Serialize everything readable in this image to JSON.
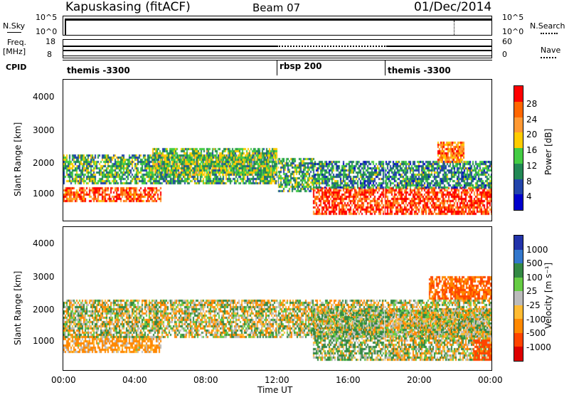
{
  "header": {
    "site": "Kapuskasing (fitACF)",
    "beam": "Beam 07",
    "date": "01/Dec/2014"
  },
  "aux_panels": {
    "nsky_label": "N.Sky",
    "nsky_ticks": [
      "10^5",
      "10^0"
    ],
    "nsearch_label": "N.Search",
    "nsearch_ticks": [
      "10^5",
      "10^0"
    ],
    "freq_label": "Freq.",
    "freq_unit": "[MHz]",
    "freq_ticks": [
      "18",
      "8"
    ],
    "nave_label": "Nave",
    "nave_ticks": [
      "60",
      "0"
    ],
    "cpid_label": "CPID",
    "cpid_segments": [
      {
        "label": "themis -3300",
        "start_hour": 0
      },
      {
        "label": "rbsp 200",
        "start_hour": 12
      },
      {
        "label": "themis -3300",
        "start_hour": 18
      }
    ]
  },
  "axes": {
    "ylabel": "Slant Range [km]",
    "xlabel": "Time UT",
    "y_ticks": [
      "4000",
      "3000",
      "2000",
      "1000"
    ],
    "x_ticks": [
      "00:00",
      "04:00",
      "08:00",
      "12:00",
      "16:00",
      "20:00",
      "00:00"
    ]
  },
  "power_colorbar": {
    "label": "Power [dB]",
    "ticks": [
      "28",
      "24",
      "20",
      "16",
      "12",
      "8",
      "4"
    ],
    "colors": [
      "#ff0000",
      "#ff6600",
      "#ff9933",
      "#ffcc00",
      "#44cc44",
      "#228855",
      "#2244aa",
      "#0000cc"
    ]
  },
  "velocity_colorbar": {
    "label": "Velocity [m s⁻¹]",
    "ticks": [
      "1000",
      "500",
      "100",
      "25",
      "-25",
      "-100",
      "-500",
      "-1000"
    ],
    "colors": [
      "#2233aa",
      "#3377cc",
      "#338844",
      "#66cc44",
      "#bbbbbb",
      "#ffbb33",
      "#ff8800",
      "#ff4400",
      "#dd0000"
    ]
  },
  "chart_data": [
    {
      "type": "heatmap",
      "title": "Power",
      "xlabel": "Time UT",
      "ylabel": "Slant Range [km]",
      "xlim": [
        0,
        24
      ],
      "ylim": [
        180,
        4500
      ],
      "colorbar_label": "Power [dB]",
      "colorbar_range": [
        0,
        32
      ],
      "bands": [
        {
          "t_start": 0.0,
          "t_end": 5.5,
          "r_low": 750,
          "r_high": 1200,
          "power_db": 26
        },
        {
          "t_start": 0.0,
          "t_end": 12.0,
          "r_low": 1300,
          "r_high": 2200,
          "power_db": 12
        },
        {
          "t_start": 5.0,
          "t_end": 12.0,
          "r_low": 1600,
          "r_high": 2400,
          "power_db": 14
        },
        {
          "t_start": 12.0,
          "t_end": 14.0,
          "r_low": 1100,
          "r_high": 2100,
          "power_db": 12
        },
        {
          "t_start": 14.0,
          "t_end": 24.0,
          "r_low": 350,
          "r_high": 1200,
          "power_db": 28
        },
        {
          "t_start": 14.0,
          "t_end": 24.0,
          "r_low": 1200,
          "r_high": 2000,
          "power_db": 10
        },
        {
          "t_start": 21.0,
          "t_end": 22.5,
          "r_low": 2000,
          "r_high": 2600,
          "power_db": 24
        }
      ]
    },
    {
      "type": "heatmap",
      "title": "Velocity",
      "xlabel": "Time UT",
      "ylabel": "Slant Range [km]",
      "xlim": [
        0,
        24
      ],
      "ylim": [
        180,
        4500
      ],
      "colorbar_label": "Velocity [m s⁻¹]",
      "colorbar_range": [
        -1000,
        1000
      ],
      "bands": [
        {
          "t_start": 0.0,
          "t_end": 5.5,
          "r_low": 700,
          "r_high": 1200,
          "velocity": -100
        },
        {
          "t_start": 0.0,
          "t_end": 24.0,
          "r_low": 1200,
          "r_high": 2300,
          "velocity": 0
        },
        {
          "t_start": 14.0,
          "t_end": 18.0,
          "r_low": 500,
          "r_high": 2000,
          "velocity": 50
        },
        {
          "t_start": 18.0,
          "t_end": 24.0,
          "r_low": 500,
          "r_high": 2000,
          "velocity": 0
        },
        {
          "t_start": 20.5,
          "t_end": 24.0,
          "r_low": 2300,
          "r_high": 3000,
          "velocity": -300
        },
        {
          "t_start": 23.0,
          "t_end": 24.0,
          "r_low": 500,
          "r_high": 1100,
          "velocity": -400
        }
      ]
    }
  ]
}
